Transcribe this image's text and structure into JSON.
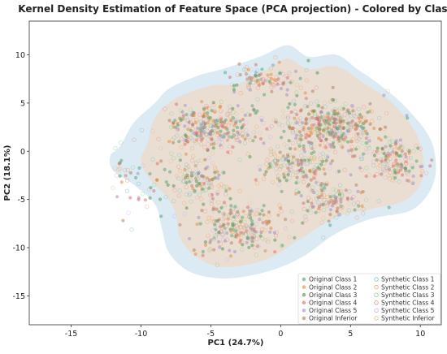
{
  "chart_data": {
    "type": "scatter",
    "title": "Kernel Density Estimation of Feature Space (PCA projection) - Colored by Class",
    "xlabel": "PC1 (24.7%)",
    "ylabel": "PC2 (18.1%)",
    "xlim": [
      -18,
      11.5
    ],
    "ylim": [
      -18,
      13.5
    ],
    "xticks": [
      -15,
      -10,
      -5,
      0,
      5,
      10
    ],
    "yticks": [
      -15,
      -10,
      -5,
      0,
      5,
      10
    ],
    "grid": false,
    "legend_position": "bottom-right",
    "legend_columns": 2,
    "density": {
      "outer": {
        "color": "#cfe3ef",
        "polygon": [
          [
            -11.5,
            0.5
          ],
          [
            -10.5,
            3
          ],
          [
            -9,
            5
          ],
          [
            -8,
            6.5
          ],
          [
            -6,
            7.8
          ],
          [
            -4,
            8.6
          ],
          [
            -1.5,
            9.8
          ],
          [
            0.5,
            11
          ],
          [
            2,
            9.8
          ],
          [
            4,
            10
          ],
          [
            5.5,
            8.5
          ],
          [
            7,
            7
          ],
          [
            9,
            4.5
          ],
          [
            10.8,
            1
          ],
          [
            11,
            -3
          ],
          [
            9.5,
            -6
          ],
          [
            6.5,
            -7
          ],
          [
            4,
            -8.5
          ],
          [
            1.5,
            -11
          ],
          [
            -1,
            -12.5
          ],
          [
            -4,
            -13.2
          ],
          [
            -6.5,
            -12.5
          ],
          [
            -8,
            -10.5
          ],
          [
            -8.5,
            -8
          ],
          [
            -9,
            -5.5
          ],
          [
            -10.5,
            -3.5
          ],
          [
            -12,
            -2
          ],
          [
            -12.2,
            -0.5
          ]
        ]
      },
      "inner": {
        "color": "#f1d8c4",
        "polygon": [
          [
            -9.5,
            1
          ],
          [
            -9,
            3.5
          ],
          [
            -7.5,
            5.5
          ],
          [
            -5,
            6.8
          ],
          [
            -3,
            7
          ],
          [
            -1,
            8.5
          ],
          [
            0.5,
            9.6
          ],
          [
            2,
            8.5
          ],
          [
            4,
            8.8
          ],
          [
            6,
            7
          ],
          [
            8,
            5
          ],
          [
            9.8,
            1.5
          ],
          [
            10.2,
            -2.5
          ],
          [
            9,
            -5
          ],
          [
            6.5,
            -6
          ],
          [
            4,
            -6.8
          ],
          [
            1.5,
            -9
          ],
          [
            -1,
            -11.2
          ],
          [
            -4,
            -12
          ],
          [
            -6,
            -11
          ],
          [
            -7.2,
            -9
          ],
          [
            -7.5,
            -6.5
          ],
          [
            -8.3,
            -4.5
          ],
          [
            -9.3,
            -3
          ],
          [
            -10,
            -1
          ]
        ]
      }
    },
    "series": [
      {
        "name": "Original Class 1",
        "color": "#4c9f70",
        "kind": "original"
      },
      {
        "name": "Original Class 2",
        "color": "#e08a3c",
        "kind": "original"
      },
      {
        "name": "Original Class 3",
        "color": "#4a8f4a",
        "kind": "original"
      },
      {
        "name": "Original Class 4",
        "color": "#d96a6a",
        "kind": "original"
      },
      {
        "name": "Original Class 5",
        "color": "#9e8ccb",
        "kind": "original"
      },
      {
        "name": "Original Inferior",
        "color": "#b07a55",
        "kind": "original"
      },
      {
        "name": "Synthetic Class 1",
        "color": "#7fc3c7",
        "kind": "synthetic"
      },
      {
        "name": "Synthetic Class 2",
        "color": "#f3a46a",
        "kind": "synthetic"
      },
      {
        "name": "Synthetic Class 3",
        "color": "#8fcf8f",
        "kind": "synthetic"
      },
      {
        "name": "Synthetic Class 4",
        "color": "#f08f8f",
        "kind": "synthetic"
      },
      {
        "name": "Synthetic Class 5",
        "color": "#c7b3e6",
        "kind": "synthetic"
      },
      {
        "name": "Synthetic Inferior",
        "color": "#e0c090",
        "kind": "synthetic"
      }
    ],
    "clusters": [
      {
        "center": [
          -5,
          2.5
        ],
        "spread": [
          2.8,
          2.2
        ],
        "count": 320
      },
      {
        "center": [
          3.5,
          2.5
        ],
        "spread": [
          3.2,
          2.4
        ],
        "count": 420
      },
      {
        "center": [
          1,
          -1.5
        ],
        "spread": [
          2.5,
          1.8
        ],
        "count": 160
      },
      {
        "center": [
          8,
          -1
        ],
        "spread": [
          1.8,
          2.2
        ],
        "count": 160
      },
      {
        "center": [
          -3,
          -8
        ],
        "spread": [
          2.8,
          2.6
        ],
        "count": 240
      },
      {
        "center": [
          3.5,
          -5
        ],
        "spread": [
          2.2,
          1.8
        ],
        "count": 140
      },
      {
        "center": [
          -1,
          7.5
        ],
        "spread": [
          2.5,
          1.4
        ],
        "count": 100
      },
      {
        "center": [
          -10.5,
          -3
        ],
        "spread": [
          2.2,
          4.5
        ],
        "count": 45
      },
      {
        "center": [
          -6,
          -3
        ],
        "spread": [
          2.5,
          2.5
        ],
        "count": 140
      }
    ]
  }
}
